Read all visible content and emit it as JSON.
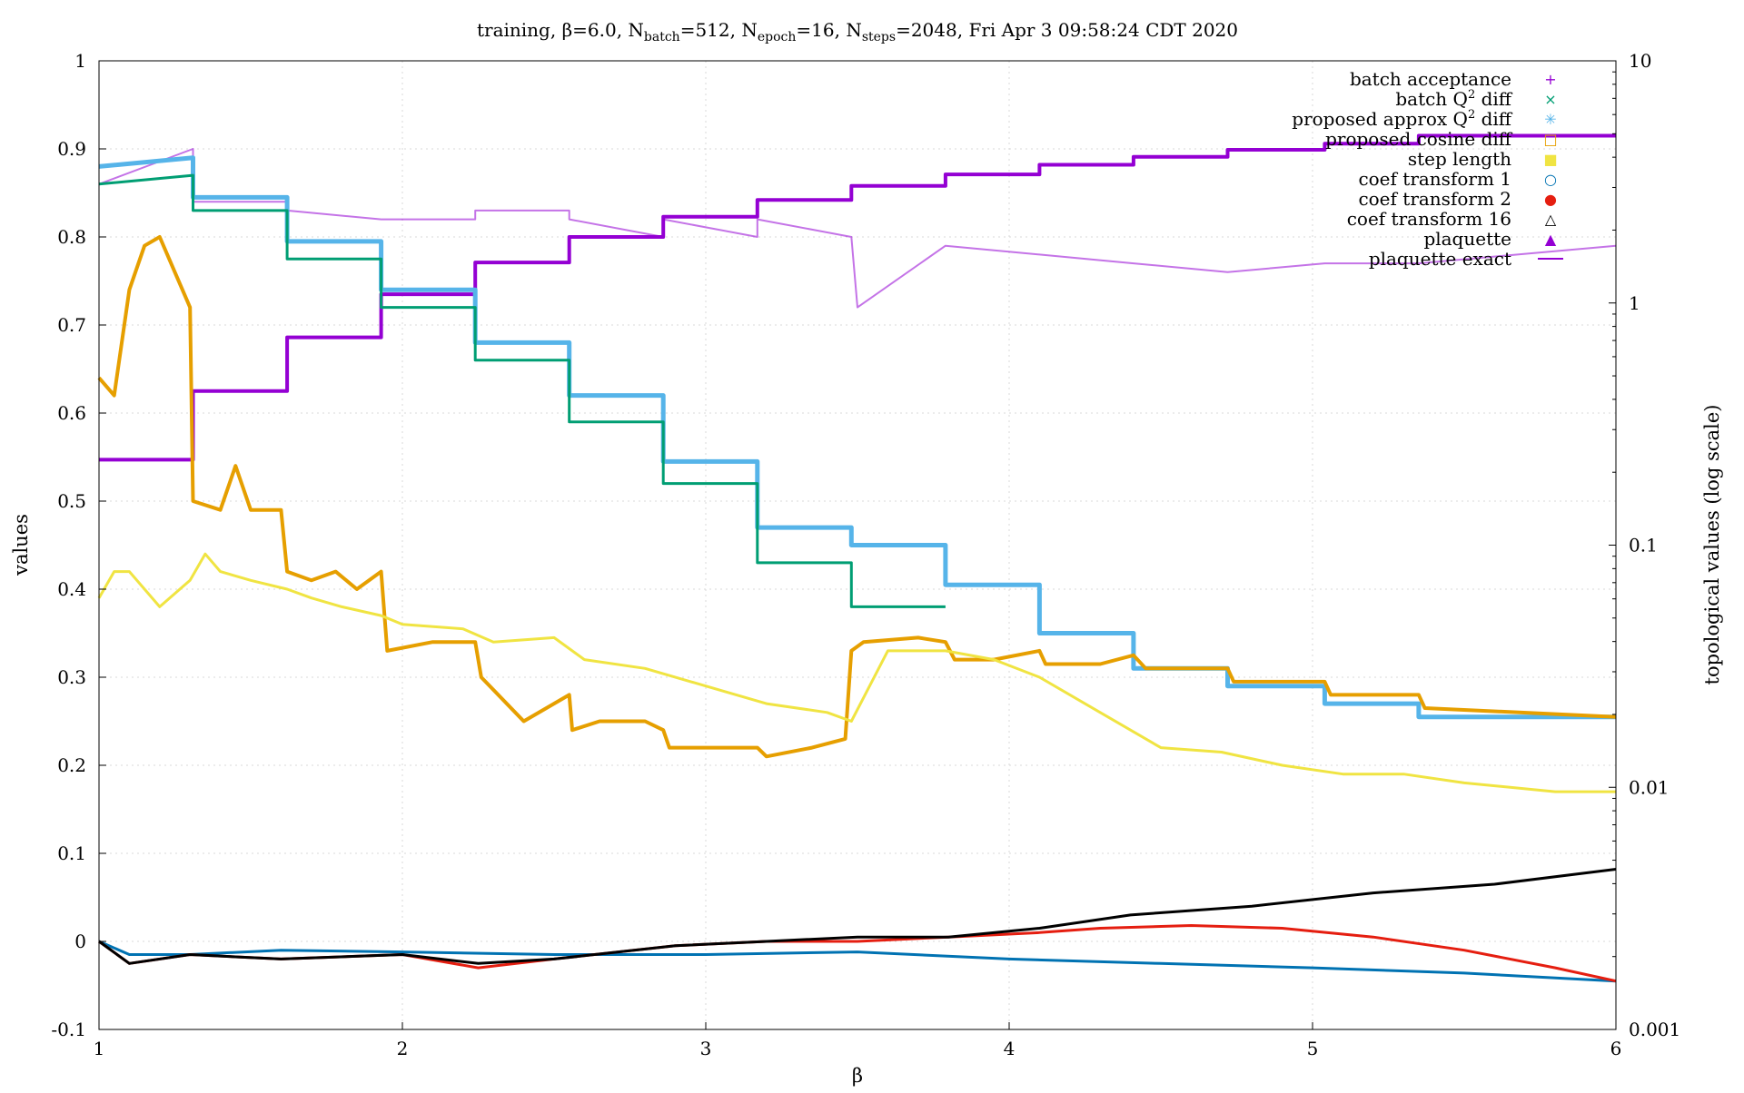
{
  "chart_data": {
    "type": "line",
    "title": "training, β=6.0, N_batch=512, N_epoch=16, N_steps=2048, Fri Apr  3 09:58:24 CDT 2020",
    "title_parts": {
      "prefix": "training, β=6.0, N",
      "batch_sub": "batch",
      "batch_val": "=512, N",
      "epoch_sub": "epoch",
      "epoch_val": "=16, N",
      "steps_sub": "steps",
      "steps_val": "=2048, Fri Apr  3 09:58:24 CDT 2020"
    },
    "xlabel": "β",
    "ylabel": "values",
    "y2label": "topological values (log scale)",
    "xlim": [
      1,
      6
    ],
    "ylim": [
      -0.1,
      1
    ],
    "y2lim": [
      0.001,
      10
    ],
    "y2_scale": "log",
    "grid": true,
    "legend_position": "top-right",
    "x_ticks": [
      "1",
      "2",
      "3",
      "4",
      "5",
      "6"
    ],
    "y_ticks": [
      "-0.1",
      "0",
      "0.1",
      "0.2",
      "0.3",
      "0.4",
      "0.5",
      "0.6",
      "0.7",
      "0.8",
      "0.9",
      "1"
    ],
    "y2_ticks": [
      "0.001",
      "0.01",
      "0.1",
      "1",
      "10"
    ],
    "legend": [
      {
        "label": "batch acceptance",
        "marker": "+",
        "color": "#9400d3"
      },
      {
        "label": "batch Q² diff",
        "label_main": "batch Q",
        "label_sup": "2",
        "label_end": " diff",
        "marker": "×",
        "color": "#009e73"
      },
      {
        "label": "proposed approx Q² diff",
        "label_main": "proposed approx Q",
        "label_sup": "2",
        "label_end": " diff",
        "marker": "✳",
        "color": "#56b4e9"
      },
      {
        "label": "proposed cosine diff",
        "marker": "□",
        "color": "#e69f00"
      },
      {
        "label": "step length",
        "marker": "■",
        "color": "#f0e442"
      },
      {
        "label": "coef transform 1",
        "marker": "○",
        "color": "#0072b2"
      },
      {
        "label": "coef transform 2",
        "marker": "●",
        "color": "#e51e10"
      },
      {
        "label": "coef transform 16",
        "marker": "△",
        "color": "#000000"
      },
      {
        "label": "plaquette",
        "marker": "▲",
        "color": "#9400d3"
      },
      {
        "label": "plaquette exact",
        "marker": "—",
        "color": "#9400d3"
      }
    ],
    "series": [
      {
        "name": "plaquette exact",
        "axis": "y1",
        "color": "#9400d3",
        "x": [
          1,
          1.31,
          1.31,
          1.62,
          1.62,
          1.93,
          1.93,
          2.24,
          2.24,
          2.55,
          2.55,
          2.86,
          2.86,
          3.17,
          3.17,
          3.48,
          3.48,
          3.79,
          3.79,
          4.1,
          4.1,
          4.41,
          4.41,
          4.72,
          4.72,
          5.04,
          5.04,
          5.35,
          5.35,
          6
        ],
        "y": [
          0.547,
          0.547,
          0.625,
          0.625,
          0.686,
          0.686,
          0.735,
          0.735,
          0.771,
          0.771,
          0.8,
          0.8,
          0.823,
          0.823,
          0.842,
          0.842,
          0.858,
          0.858,
          0.871,
          0.871,
          0.882,
          0.882,
          0.891,
          0.891,
          0.899,
          0.899,
          0.906,
          0.906,
          0.915,
          0.915
        ]
      },
      {
        "name": "batch acceptance",
        "axis": "y1",
        "color": "#9400d3",
        "x": [
          1,
          1.31,
          1.31,
          1.62,
          1.62,
          1.93,
          1.93,
          2.24,
          2.24,
          2.55,
          2.55,
          2.86,
          2.86,
          3.17,
          3.17,
          3.48,
          3.5,
          3.79,
          3.79,
          4.1,
          4.1,
          4.41,
          4.41,
          4.72,
          4.72,
          5.04,
          5.04,
          5.35,
          5.35,
          6
        ],
        "y": [
          0.86,
          0.9,
          0.84,
          0.84,
          0.83,
          0.82,
          0.82,
          0.82,
          0.83,
          0.83,
          0.82,
          0.8,
          0.82,
          0.8,
          0.82,
          0.8,
          0.72,
          0.79,
          0.79,
          0.78,
          0.78,
          0.77,
          0.77,
          0.76,
          0.76,
          0.77,
          0.77,
          0.77,
          0.77,
          0.79
        ]
      },
      {
        "name": "proposed approx Q² diff",
        "axis": "y1",
        "color": "#56b4e9",
        "x": [
          1,
          1.31,
          1.31,
          1.62,
          1.62,
          1.93,
          1.93,
          2.24,
          2.24,
          2.55,
          2.55,
          2.86,
          2.86,
          3.17,
          3.17,
          3.48,
          3.48,
          3.79,
          3.79,
          4.1,
          4.1,
          4.41,
          4.41,
          4.72,
          4.72,
          5.04,
          5.04,
          5.35,
          5.35,
          6
        ],
        "y": [
          0.88,
          0.89,
          0.845,
          0.845,
          0.795,
          0.795,
          0.74,
          0.74,
          0.68,
          0.68,
          0.62,
          0.62,
          0.545,
          0.545,
          0.47,
          0.47,
          0.45,
          0.45,
          0.405,
          0.405,
          0.35,
          0.35,
          0.31,
          0.31,
          0.29,
          0.29,
          0.27,
          0.27,
          0.255,
          0.255
        ]
      },
      {
        "name": "batch Q² diff",
        "axis": "y1",
        "color": "#009e73",
        "x": [
          1,
          1.31,
          1.31,
          1.62,
          1.62,
          1.93,
          1.93,
          2.24,
          2.24,
          2.55,
          2.55,
          2.86,
          2.86,
          3.17,
          3.17,
          3.48,
          3.48,
          3.79
        ],
        "y": [
          0.86,
          0.87,
          0.83,
          0.83,
          0.775,
          0.775,
          0.72,
          0.72,
          0.66,
          0.66,
          0.59,
          0.59,
          0.52,
          0.52,
          0.43,
          0.43,
          0.38,
          0.38
        ]
      },
      {
        "name": "proposed cosine diff",
        "axis": "y1",
        "color": "#e69f00",
        "x": [
          1,
          1.05,
          1.1,
          1.15,
          1.2,
          1.25,
          1.3,
          1.31,
          1.4,
          1.45,
          1.5,
          1.6,
          1.62,
          1.7,
          1.78,
          1.85,
          1.93,
          1.95,
          2.1,
          2.24,
          2.26,
          2.4,
          2.55,
          2.56,
          2.65,
          2.8,
          2.86,
          2.88,
          3.05,
          3.17,
          3.2,
          3.35,
          3.46,
          3.48,
          3.52,
          3.7,
          3.79,
          3.82,
          3.95,
          4.1,
          4.12,
          4.3,
          4.41,
          4.45,
          4.72,
          4.74,
          5.04,
          5.06,
          5.35,
          5.37,
          6
        ],
        "y": [
          0.64,
          0.62,
          0.74,
          0.79,
          0.8,
          0.76,
          0.72,
          0.5,
          0.49,
          0.54,
          0.49,
          0.49,
          0.42,
          0.41,
          0.42,
          0.4,
          0.42,
          0.33,
          0.34,
          0.34,
          0.3,
          0.25,
          0.28,
          0.24,
          0.25,
          0.25,
          0.24,
          0.22,
          0.22,
          0.22,
          0.21,
          0.22,
          0.23,
          0.33,
          0.34,
          0.345,
          0.34,
          0.32,
          0.32,
          0.33,
          0.315,
          0.315,
          0.325,
          0.31,
          0.31,
          0.295,
          0.295,
          0.28,
          0.28,
          0.265,
          0.255
        ]
      },
      {
        "name": "step length",
        "axis": "y1",
        "color": "#f0e442",
        "x": [
          1,
          1.05,
          1.1,
          1.2,
          1.3,
          1.35,
          1.4,
          1.5,
          1.62,
          1.7,
          1.8,
          1.93,
          2.0,
          2.2,
          2.3,
          2.5,
          2.6,
          2.8,
          3.0,
          3.2,
          3.4,
          3.48,
          3.6,
          3.79,
          3.95,
          4.1,
          4.3,
          4.5,
          4.7,
          4.9,
          5.1,
          5.3,
          5.5,
          5.8,
          6
        ],
        "y": [
          0.39,
          0.42,
          0.42,
          0.38,
          0.41,
          0.44,
          0.42,
          0.41,
          0.4,
          0.39,
          0.38,
          0.37,
          0.36,
          0.355,
          0.34,
          0.345,
          0.32,
          0.31,
          0.29,
          0.27,
          0.26,
          0.25,
          0.33,
          0.33,
          0.32,
          0.3,
          0.26,
          0.22,
          0.215,
          0.2,
          0.19,
          0.19,
          0.18,
          0.17,
          0.17
        ]
      },
      {
        "name": "coef transform 1",
        "axis": "y1",
        "color": "#0072b2",
        "x": [
          1,
          1.1,
          1.3,
          1.6,
          2.0,
          2.5,
          3.0,
          3.5,
          4.0,
          4.5,
          5.0,
          5.5,
          6
        ],
        "y": [
          0,
          -0.015,
          -0.015,
          -0.01,
          -0.012,
          -0.015,
          -0.015,
          -0.012,
          -0.02,
          -0.025,
          -0.03,
          -0.036,
          -0.045
        ]
      },
      {
        "name": "coef transform 2",
        "axis": "y1",
        "color": "#e51e10",
        "x": [
          1,
          1.1,
          1.3,
          1.6,
          2.0,
          2.25,
          2.5,
          2.9,
          3.2,
          3.5,
          3.8,
          4.1,
          4.3,
          4.6,
          4.9,
          5.2,
          5.5,
          5.8,
          6
        ],
        "y": [
          0,
          -0.025,
          -0.015,
          -0.02,
          -0.015,
          -0.03,
          -0.02,
          -0.005,
          0,
          0,
          0.005,
          0.01,
          0.015,
          0.018,
          0.015,
          0.005,
          -0.01,
          -0.03,
          -0.045
        ]
      },
      {
        "name": "coef transform 16",
        "axis": "y1",
        "color": "#000000",
        "x": [
          1,
          1.1,
          1.3,
          1.6,
          2.0,
          2.25,
          2.5,
          2.9,
          3.2,
          3.5,
          3.8,
          4.1,
          4.4,
          4.8,
          5.2,
          5.6,
          6
        ],
        "y": [
          0,
          -0.025,
          -0.015,
          -0.02,
          -0.015,
          -0.025,
          -0.02,
          -0.005,
          0,
          0.005,
          0.005,
          0.015,
          0.03,
          0.04,
          0.055,
          0.065,
          0.082
        ]
      }
    ]
  }
}
